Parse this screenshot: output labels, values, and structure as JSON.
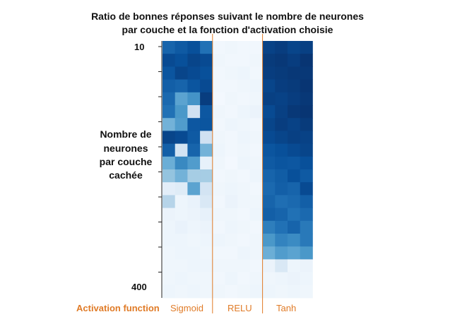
{
  "chart_data": {
    "type": "heatmap",
    "title_line1": "Ratio de bonnes réponses suivant le nombre de neurones",
    "title_line2": "par couche et la fonction d'activation choisie",
    "ylabel_lines": [
      "Nombre de",
      "neurones",
      "par couche",
      "cachée"
    ],
    "y_top_label": "10",
    "y_bottom_label": "400",
    "x_axis_caption": "Activation function",
    "categories": [
      "Sigmoid",
      "RELU",
      "Tanh"
    ],
    "colormap": "Blues",
    "highlight_color": "#e07b27",
    "rows": 20,
    "columns_per_category": 4,
    "values": {
      "Sigmoid": [
        [
          0.8,
          0.84,
          0.88,
          0.75
        ],
        [
          0.9,
          0.88,
          0.92,
          0.9
        ],
        [
          0.86,
          0.92,
          0.9,
          0.88
        ],
        [
          0.82,
          0.8,
          0.86,
          0.9
        ],
        [
          0.78,
          0.55,
          0.62,
          0.95
        ],
        [
          0.75,
          0.6,
          0.2,
          0.85
        ],
        [
          0.48,
          0.58,
          0.85,
          0.86
        ],
        [
          0.92,
          0.9,
          0.84,
          0.2
        ],
        [
          0.82,
          0.18,
          0.8,
          0.48
        ],
        [
          0.5,
          0.66,
          0.58,
          0.08
        ],
        [
          0.4,
          0.48,
          0.35,
          0.35
        ],
        [
          0.1,
          0.12,
          0.55,
          0.18
        ],
        [
          0.3,
          0.05,
          0.07,
          0.15
        ],
        [
          0.06,
          0.05,
          0.06,
          0.08
        ],
        [
          0.05,
          0.07,
          0.05,
          0.06
        ],
        [
          0.05,
          0.05,
          0.04,
          0.05
        ],
        [
          0.04,
          0.05,
          0.05,
          0.04
        ],
        [
          0.04,
          0.04,
          0.05,
          0.05
        ],
        [
          0.04,
          0.05,
          0.04,
          0.04
        ],
        [
          0.05,
          0.04,
          0.05,
          0.04
        ]
      ],
      "RELU": [
        [
          0.03,
          0.04,
          0.03,
          0.03
        ],
        [
          0.04,
          0.03,
          0.03,
          0.04
        ],
        [
          0.03,
          0.04,
          0.05,
          0.03
        ],
        [
          0.03,
          0.03,
          0.04,
          0.05
        ],
        [
          0.02,
          0.04,
          0.03,
          0.04
        ],
        [
          0.04,
          0.03,
          0.05,
          0.06
        ],
        [
          0.03,
          0.05,
          0.04,
          0.03
        ],
        [
          0.04,
          0.03,
          0.05,
          0.04
        ],
        [
          0.05,
          0.03,
          0.04,
          0.03
        ],
        [
          0.04,
          0.02,
          0.05,
          0.04
        ],
        [
          0.03,
          0.04,
          0.03,
          0.05
        ],
        [
          0.04,
          0.05,
          0.04,
          0.03
        ],
        [
          0.03,
          0.06,
          0.04,
          0.04
        ],
        [
          0.04,
          0.04,
          0.03,
          0.05
        ],
        [
          0.03,
          0.05,
          0.04,
          0.03
        ],
        [
          0.05,
          0.04,
          0.03,
          0.04
        ],
        [
          0.03,
          0.03,
          0.05,
          0.04
        ],
        [
          0.04,
          0.04,
          0.04,
          0.03
        ],
        [
          0.03,
          0.05,
          0.03,
          0.04
        ],
        [
          0.04,
          0.03,
          0.04,
          0.05
        ]
      ],
      "Tanh": [
        [
          0.93,
          0.95,
          0.92,
          0.94
        ],
        [
          0.96,
          0.97,
          0.95,
          0.98
        ],
        [
          0.95,
          0.96,
          0.97,
          0.97
        ],
        [
          0.92,
          0.95,
          0.96,
          0.98
        ],
        [
          0.94,
          0.93,
          0.95,
          0.97
        ],
        [
          0.9,
          0.94,
          0.97,
          0.98
        ],
        [
          0.92,
          0.95,
          0.93,
          0.96
        ],
        [
          0.9,
          0.92,
          0.94,
          0.93
        ],
        [
          0.86,
          0.88,
          0.9,
          0.92
        ],
        [
          0.84,
          0.86,
          0.85,
          0.88
        ],
        [
          0.8,
          0.83,
          0.88,
          0.84
        ],
        [
          0.78,
          0.82,
          0.8,
          0.9
        ],
        [
          0.8,
          0.76,
          0.78,
          0.82
        ],
        [
          0.82,
          0.8,
          0.75,
          0.78
        ],
        [
          0.7,
          0.75,
          0.8,
          0.72
        ],
        [
          0.6,
          0.68,
          0.65,
          0.72
        ],
        [
          0.5,
          0.58,
          0.55,
          0.6
        ],
        [
          0.06,
          0.15,
          0.05,
          0.06
        ],
        [
          0.04,
          0.05,
          0.06,
          0.05
        ],
        [
          0.05,
          0.04,
          0.05,
          0.04
        ]
      ]
    }
  }
}
